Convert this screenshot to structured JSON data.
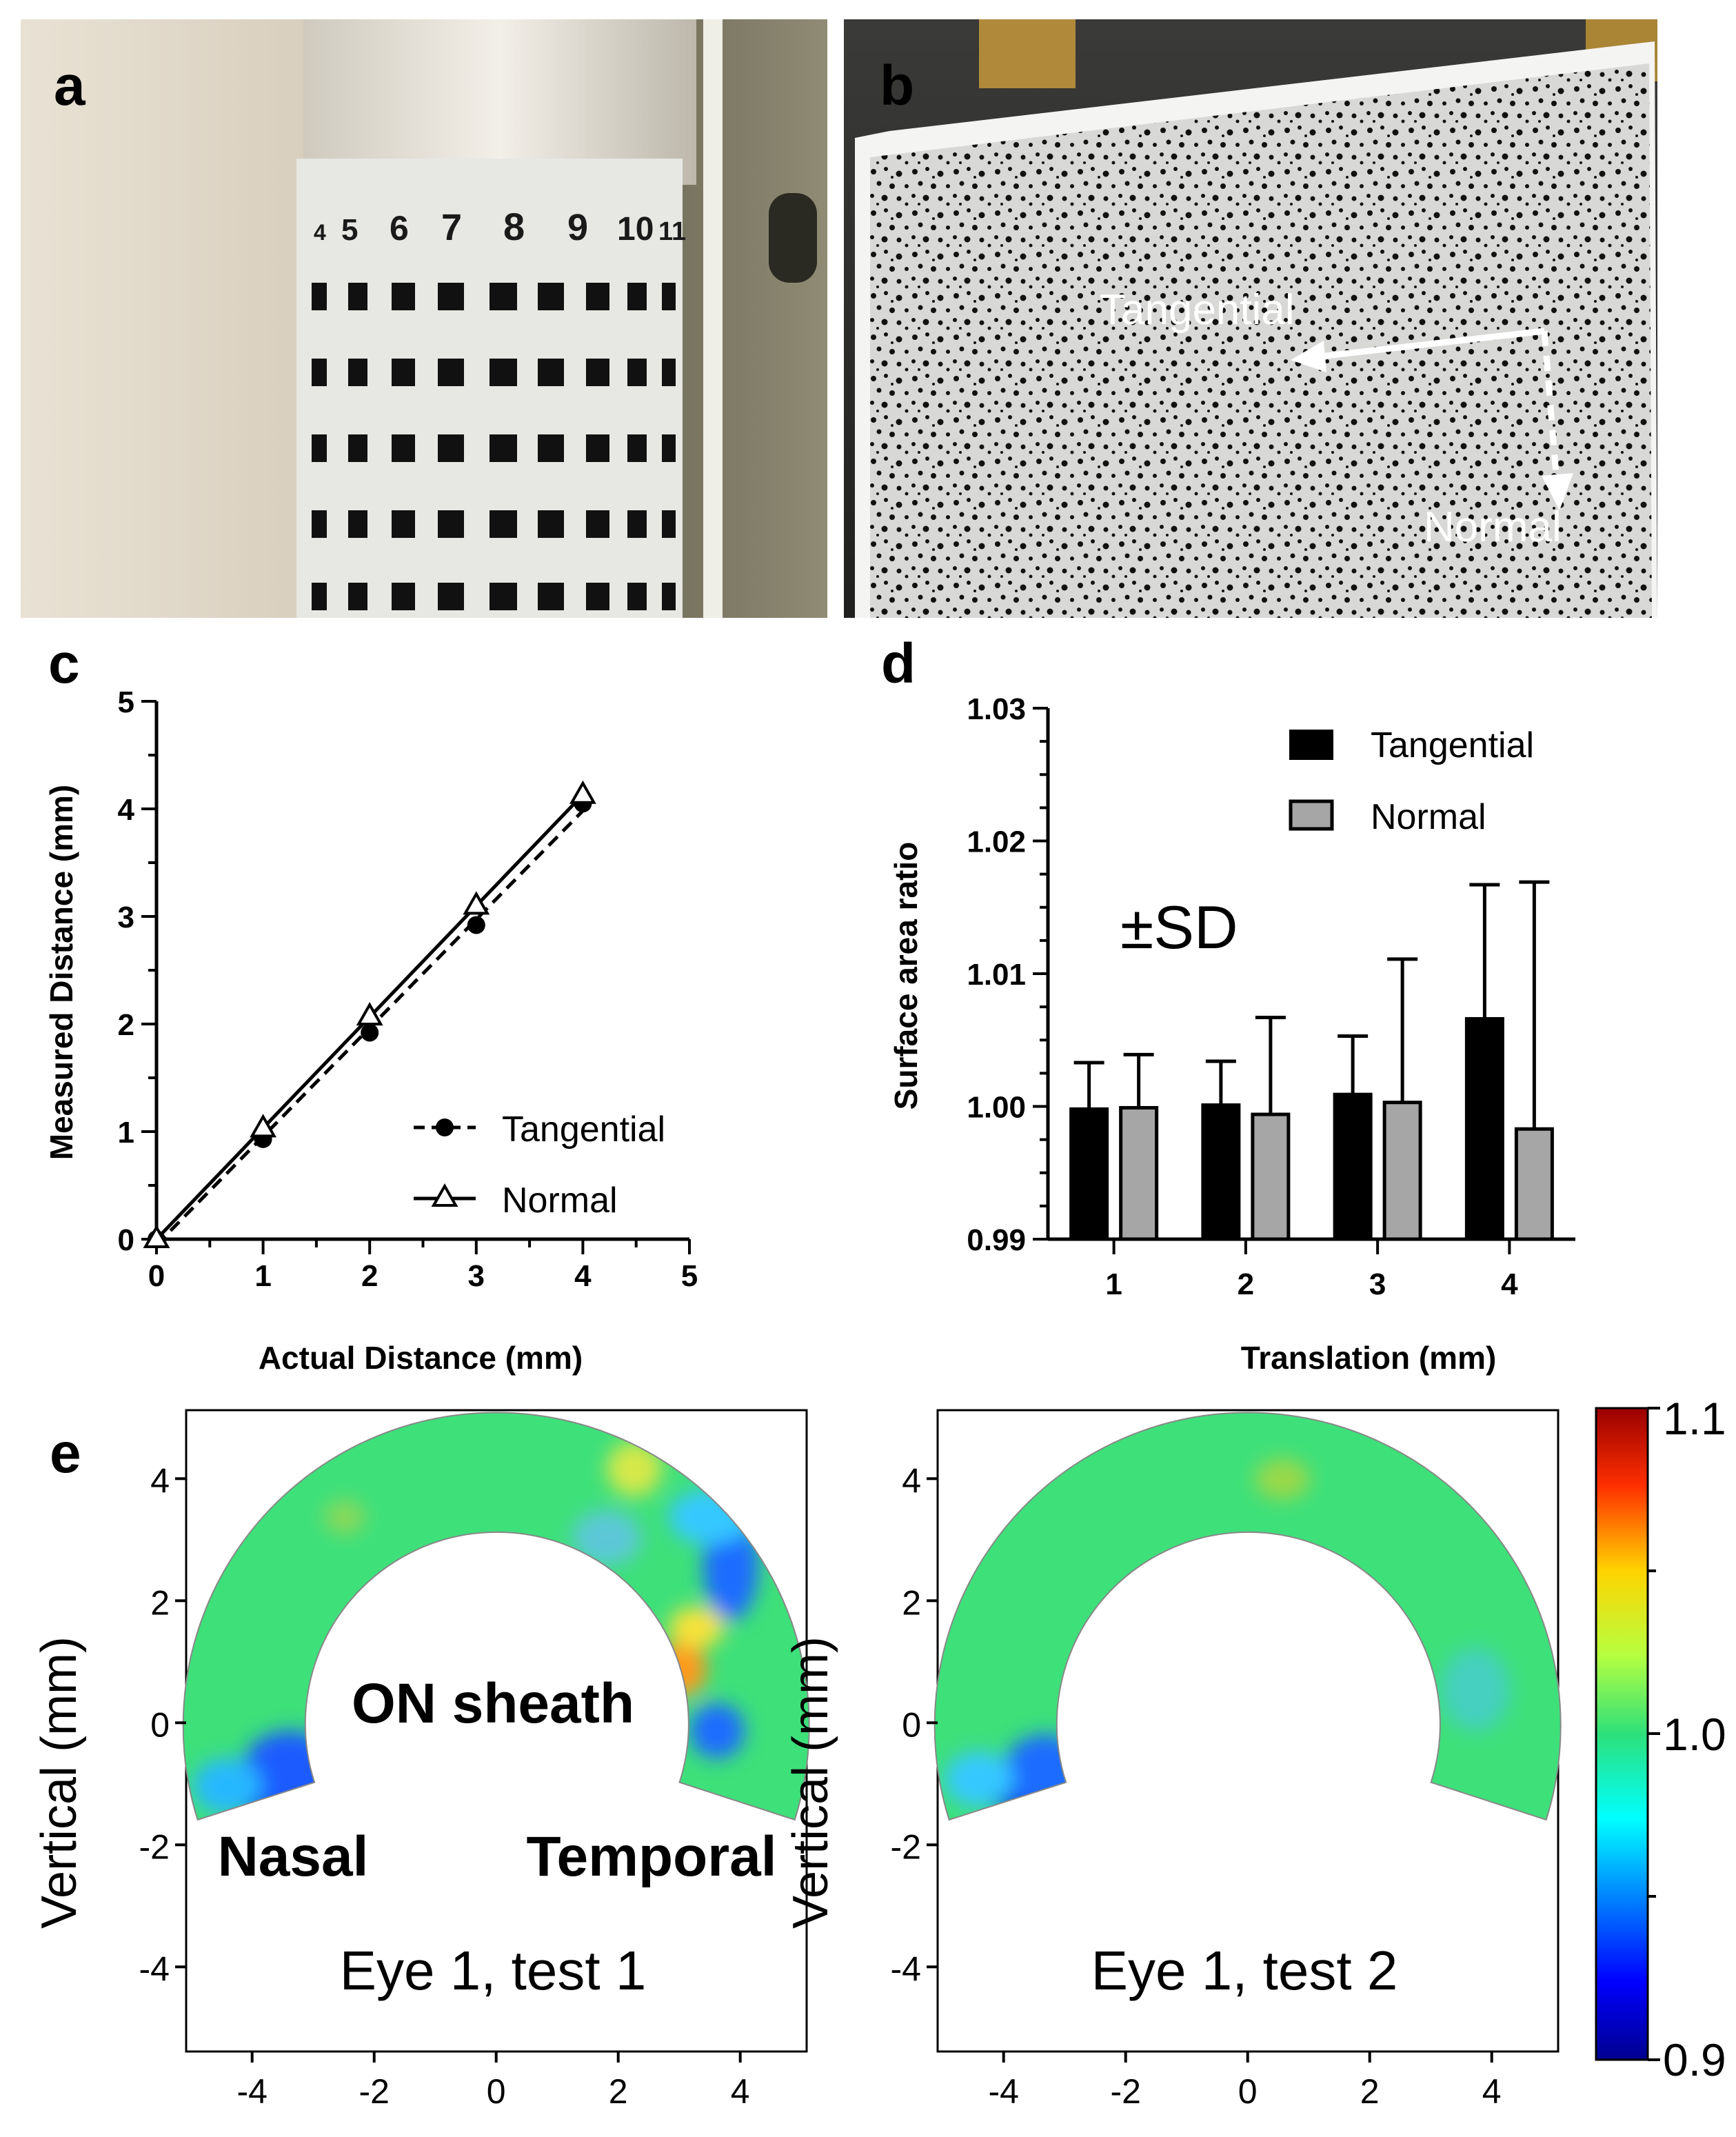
{
  "panels": {
    "a": {
      "letter": "a",
      "column_labels": [
        "4",
        "5",
        "6",
        "7",
        "8",
        "9",
        "10",
        "11"
      ]
    },
    "b": {
      "letter": "b",
      "tangential_label": "Tangential",
      "normal_label": "Normal"
    },
    "c": {
      "letter": "c"
    },
    "d": {
      "letter": "d",
      "annotation": "±SD"
    },
    "e": {
      "letter": "e",
      "left": {
        "caption": "Eye 1, test 1",
        "center_label": "ON sheath",
        "nasal_label": "Nasal",
        "temporal_label": "Temporal"
      },
      "right": {
        "caption": "Eye 1, test 2"
      },
      "ylabel": "Vertical (mm)",
      "yticks": [
        "4",
        "2",
        "0",
        "-2",
        "-4"
      ],
      "xticks": [
        "-4",
        "-2",
        "0",
        "2",
        "4"
      ],
      "colorbar": {
        "max_label": "1.1",
        "mid_label": "1.0",
        "min_label": "0.9",
        "min": 0.9,
        "max": 1.1
      }
    }
  },
  "chart_data": [
    {
      "id": "c",
      "type": "line",
      "xlabel": "Actual Distance (mm)",
      "ylabel": "Measured Distance (mm)",
      "xlim": [
        0,
        5
      ],
      "ylim": [
        0,
        5
      ],
      "xticks": [
        0,
        1,
        2,
        3,
        4,
        5
      ],
      "yticks": [
        0,
        1,
        2,
        3,
        4,
        5
      ],
      "legend_position": "bottom-right",
      "series": [
        {
          "name": "Tangential",
          "marker": "circle",
          "line": "dashed",
          "x": [
            0,
            1,
            2,
            3,
            4
          ],
          "y": [
            0,
            0.93,
            1.92,
            2.92,
            4.05
          ]
        },
        {
          "name": "Normal",
          "marker": "triangle",
          "line": "solid",
          "x": [
            0,
            1,
            2,
            3,
            4
          ],
          "y": [
            0,
            1.03,
            2.07,
            3.1,
            4.13
          ]
        }
      ]
    },
    {
      "id": "d",
      "type": "bar",
      "xlabel": "Translation (mm)",
      "ylabel": "Surface area ratio",
      "categories": [
        "1",
        "2",
        "3",
        "4"
      ],
      "ylim": [
        0.99,
        1.03
      ],
      "yticks": [
        0.99,
        1.0,
        1.01,
        1.02,
        1.03
      ],
      "ytick_labels": [
        "0.99",
        "1.00",
        "1.01",
        "1.02",
        "1.03"
      ],
      "legend_position": "top-right",
      "series": [
        {
          "name": "Tangential",
          "color": "#000000",
          "values": [
            0.9998,
            1.0001,
            1.0009,
            1.0066
          ],
          "sd": [
            0.0035,
            0.0033,
            0.0044,
            0.0101
          ]
        },
        {
          "name": "Normal",
          "color": "#a6a6a6",
          "values": [
            0.9999,
            0.9994,
            1.0003,
            0.9983
          ],
          "sd": [
            0.004,
            0.0073,
            0.0108,
            0.0186
          ]
        }
      ]
    }
  ]
}
